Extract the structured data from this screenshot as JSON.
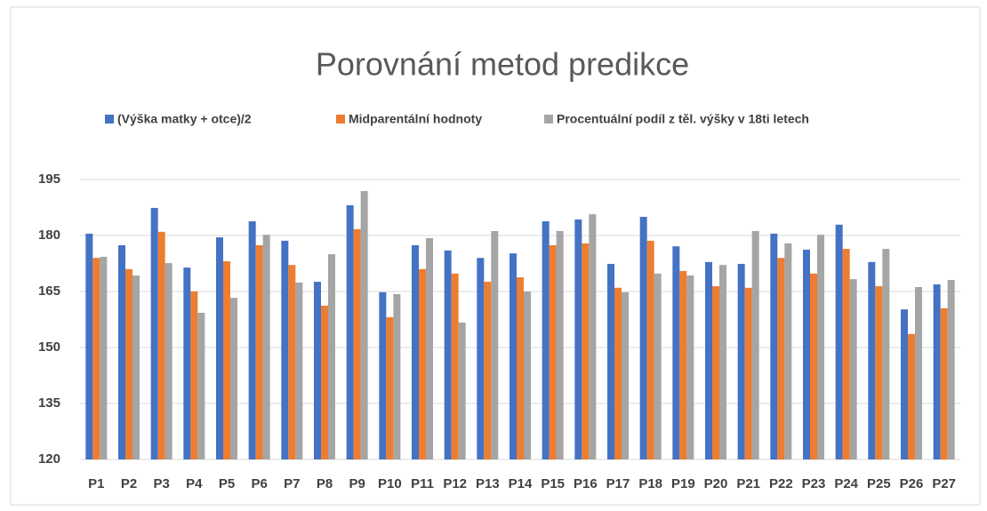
{
  "chart_data": {
    "type": "bar",
    "title": "Porovnání metod predikce",
    "categories": [
      "P1",
      "P2",
      "P3",
      "P4",
      "P5",
      "P6",
      "P7",
      "P8",
      "P9",
      "P10",
      "P11",
      "P12",
      "P13",
      "P14",
      "P15",
      "P16",
      "P17",
      "P18",
      "P19",
      "P20",
      "P21",
      "P22",
      "P23",
      "P24",
      "P25",
      "P26",
      "P27"
    ],
    "series": [
      {
        "name": "(Výška matky + otce)/2",
        "color": "#4472c4",
        "values": [
          180.5,
          177.4,
          187.4,
          171.4,
          179.5,
          183.8,
          178.6,
          167.6,
          188.1,
          164.8,
          177.4,
          176,
          174,
          175.2,
          183.8,
          184.3,
          172.4,
          185,
          177.1,
          172.9,
          172.4,
          180.5,
          176.2,
          182.9,
          172.9,
          160.2,
          166.9
        ]
      },
      {
        "name": "Midparentální hodnoty",
        "color": "#ed7d31",
        "values": [
          174,
          171,
          181,
          165,
          173.1,
          177.4,
          172.1,
          161.2,
          181.7,
          158.1,
          171,
          169.8,
          167.6,
          168.8,
          177.4,
          177.9,
          166,
          178.6,
          170.5,
          166.4,
          166,
          174,
          169.8,
          176.4,
          166.4,
          153.6,
          160.5
        ]
      },
      {
        "name": "Procentuální podíl z těl. výšky v 18ti letech",
        "color": "#a5a5a5",
        "values": [
          174.3,
          169.3,
          172.6,
          159.3,
          163.3,
          180.2,
          167.4,
          175,
          191.9,
          164.3,
          179.3,
          156.7,
          181.2,
          165,
          181.2,
          185.7,
          164.8,
          169.8,
          169.3,
          172.1,
          181.2,
          177.9,
          180.2,
          168.3,
          176.4,
          166.2,
          168.1
        ]
      }
    ],
    "ylim": [
      120,
      195
    ],
    "yticks": [
      120,
      135,
      150,
      165,
      180,
      195
    ],
    "grid": true,
    "legend": "top"
  }
}
